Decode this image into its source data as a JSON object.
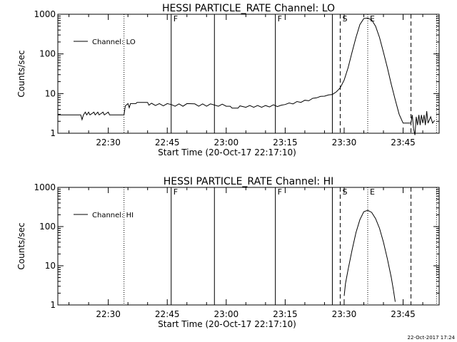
{
  "chart_data": [
    {
      "type": "line",
      "title": "HESSI PARTICLE_RATE Channel: LO",
      "xlabel": "Start Time (20-Oct-17 22:17:10)",
      "ylabel": "Counts/sec",
      "y_scale": "log",
      "ylim": [
        1,
        1000
      ],
      "xlim_minutes_after_2217_10": [
        0,
        97
      ],
      "x_ticks": [
        "22:30",
        "22:45",
        "23:00",
        "23:15",
        "23:30",
        "23:45"
      ],
      "y_ticks": [
        "1",
        "10",
        "100",
        "1000"
      ],
      "legend": {
        "placement": "top-left",
        "entries": [
          "Channel: LO"
        ]
      },
      "grid": false,
      "markers": [
        {
          "time": "22:34:00",
          "style": "dotted",
          "label": ""
        },
        {
          "time": "22:46:00",
          "style": "solid",
          "label": "F"
        },
        {
          "time": "22:57:00",
          "style": "solid",
          "label": ""
        },
        {
          "time": "23:12:30",
          "style": "solid",
          "label": "F"
        },
        {
          "time": "23:27:00",
          "style": "solid",
          "label": ""
        },
        {
          "time": "23:29:00",
          "style": "dashed",
          "label": "S"
        },
        {
          "time": "23:36:00",
          "style": "dotted",
          "label": "E"
        },
        {
          "time": "23:47:00",
          "style": "dashed",
          "label": ""
        },
        {
          "time": "23:53:30",
          "style": "dotted",
          "label": ""
        }
      ],
      "series": [
        {
          "name": "Channel: LO",
          "points": [
            [
              "22:17:10",
              2.9
            ],
            [
              "22:22:00",
              2.9
            ],
            [
              "22:23:00",
              2.9
            ],
            [
              "22:23:20",
              2.2
            ],
            [
              "22:23:40",
              2.9
            ],
            [
              "22:24:10",
              3.4
            ],
            [
              "22:24:30",
              2.9
            ],
            [
              "22:25:00",
              3.4
            ],
            [
              "22:25:20",
              2.9
            ],
            [
              "22:26:20",
              3.4
            ],
            [
              "22:26:40",
              2.9
            ],
            [
              "22:27:20",
              3.4
            ],
            [
              "22:27:40",
              2.9
            ],
            [
              "22:28:40",
              3.4
            ],
            [
              "22:29:00",
              2.9
            ],
            [
              "22:30:00",
              3.4
            ],
            [
              "22:30:20",
              2.9
            ],
            [
              "22:34:00",
              2.9
            ],
            [
              "22:34:20",
              4.9
            ],
            [
              "22:35:00",
              5.6
            ],
            [
              "22:35:20",
              4.4
            ],
            [
              "22:35:40",
              5.6
            ],
            [
              "22:37:00",
              5.6
            ],
            [
              "22:37:20",
              6.0
            ],
            [
              "22:40:00",
              6.0
            ],
            [
              "22:40:20",
              5.1
            ],
            [
              "22:41:00",
              5.7
            ],
            [
              "22:42:00",
              5.0
            ],
            [
              "22:43:00",
              5.6
            ],
            [
              "22:44:00",
              4.9
            ],
            [
              "22:45:00",
              5.6
            ],
            [
              "22:46:00",
              5.3
            ],
            [
              "22:47:00",
              4.8
            ],
            [
              "22:48:00",
              5.5
            ],
            [
              "22:49:00",
              4.8
            ],
            [
              "22:50:00",
              5.6
            ],
            [
              "22:52:00",
              5.5
            ],
            [
              "22:53:00",
              4.8
            ],
            [
              "22:54:00",
              5.5
            ],
            [
              "22:55:00",
              4.8
            ],
            [
              "22:56:00",
              5.5
            ],
            [
              "22:58:00",
              4.8
            ],
            [
              "22:59:00",
              5.4
            ],
            [
              "23:00:00",
              4.8
            ],
            [
              "23:01:00",
              4.8
            ],
            [
              "23:01:30",
              4.3
            ],
            [
              "23:03:00",
              4.3
            ],
            [
              "23:03:30",
              4.9
            ],
            [
              "23:05:00",
              4.5
            ],
            [
              "23:06:00",
              5.0
            ],
            [
              "23:07:00",
              4.5
            ],
            [
              "23:08:00",
              5.0
            ],
            [
              "23:09:00",
              4.5
            ],
            [
              "23:10:00",
              5.0
            ],
            [
              "23:11:00",
              4.6
            ],
            [
              "23:12:00",
              5.2
            ],
            [
              "23:13:00",
              4.7
            ],
            [
              "23:14:00",
              5.1
            ],
            [
              "23:15:00",
              5.3
            ],
            [
              "23:16:00",
              5.8
            ],
            [
              "23:17:00",
              5.5
            ],
            [
              "23:18:00",
              6.3
            ],
            [
              "23:19:00",
              6.0
            ],
            [
              "23:20:00",
              6.8
            ],
            [
              "23:21:00",
              6.6
            ],
            [
              "23:22:00",
              7.6
            ],
            [
              "23:23:00",
              7.8
            ],
            [
              "23:24:00",
              8.5
            ],
            [
              "23:25:00",
              8.6
            ],
            [
              "23:26:00",
              9.2
            ],
            [
              "23:27:00",
              9.5
            ],
            [
              "23:28:00",
              11
            ],
            [
              "23:29:00",
              14
            ],
            [
              "23:30:00",
              22
            ],
            [
              "23:31:00",
              45
            ],
            [
              "23:32:00",
              110
            ],
            [
              "23:33:00",
              260
            ],
            [
              "23:34:00",
              550
            ],
            [
              "23:35:00",
              780
            ],
            [
              "23:36:00",
              800
            ],
            [
              "23:37:00",
              720
            ],
            [
              "23:38:00",
              500
            ],
            [
              "23:39:00",
              260
            ],
            [
              "23:40:00",
              110
            ],
            [
              "23:41:00",
              45
            ],
            [
              "23:42:00",
              17
            ],
            [
              "23:43:00",
              7
            ],
            [
              "23:44:00",
              3
            ],
            [
              "23:45:00",
              1.8
            ],
            [
              "23:47:00",
              1.8
            ],
            [
              "23:47:20",
              2.9
            ],
            [
              "23:47:40",
              1.3
            ],
            [
              "23:48:00",
              0.9
            ],
            [
              "23:48:20",
              2.6
            ],
            [
              "23:48:40",
              1.6
            ],
            [
              "23:49:00",
              2.9
            ],
            [
              "23:49:20",
              1.6
            ],
            [
              "23:49:40",
              2.9
            ],
            [
              "23:50:00",
              1.8
            ],
            [
              "23:50:20",
              2.9
            ],
            [
              "23:50:40",
              1.6
            ],
            [
              "23:51:00",
              3.6
            ],
            [
              "23:51:20",
              1.8
            ],
            [
              "23:52:00",
              2.6
            ],
            [
              "23:52:30",
              1.8
            ],
            [
              "23:53:00",
              2.1
            ]
          ]
        }
      ]
    },
    {
      "type": "line",
      "title": "HESSI PARTICLE_RATE Channel: HI",
      "xlabel": "Start Time (20-Oct-17 22:17:10)",
      "ylabel": "Counts/sec",
      "y_scale": "log",
      "ylim": [
        1,
        1000
      ],
      "xlim_minutes_after_2217_10": [
        0,
        97
      ],
      "x_ticks": [
        "22:30",
        "22:45",
        "23:00",
        "23:15",
        "23:30",
        "23:45"
      ],
      "y_ticks": [
        "1",
        "10",
        "100",
        "1000"
      ],
      "legend": {
        "placement": "top-left",
        "entries": [
          "Channel: HI"
        ]
      },
      "grid": false,
      "markers": [
        {
          "time": "22:34:00",
          "style": "dotted",
          "label": ""
        },
        {
          "time": "22:46:00",
          "style": "solid",
          "label": "F"
        },
        {
          "time": "22:57:00",
          "style": "solid",
          "label": ""
        },
        {
          "time": "23:12:30",
          "style": "solid",
          "label": "F"
        },
        {
          "time": "23:27:00",
          "style": "solid",
          "label": ""
        },
        {
          "time": "23:29:00",
          "style": "dashed",
          "label": "S"
        },
        {
          "time": "23:36:00",
          "style": "dotted",
          "label": "E"
        },
        {
          "time": "23:47:00",
          "style": "dashed",
          "label": ""
        },
        {
          "time": "23:53:30",
          "style": "dotted",
          "label": ""
        }
      ],
      "series": [
        {
          "name": "Channel: HI",
          "points": [
            [
              "23:30:00",
              1.7
            ],
            [
              "23:30:20",
              3.5
            ],
            [
              "23:31:00",
              8
            ],
            [
              "23:32:00",
              25
            ],
            [
              "23:33:00",
              70
            ],
            [
              "23:34:00",
              150
            ],
            [
              "23:35:00",
              240
            ],
            [
              "23:36:00",
              260
            ],
            [
              "23:37:00",
              230
            ],
            [
              "23:38:00",
              160
            ],
            [
              "23:39:00",
              90
            ],
            [
              "23:40:00",
              40
            ],
            [
              "23:41:00",
              15
            ],
            [
              "23:42:00",
              5
            ],
            [
              "23:42:30",
              2.5
            ],
            [
              "23:43:00",
              1.2
            ]
          ]
        }
      ]
    }
  ],
  "footer": {
    "timestamp": "22-Oct-2017 17:24"
  }
}
